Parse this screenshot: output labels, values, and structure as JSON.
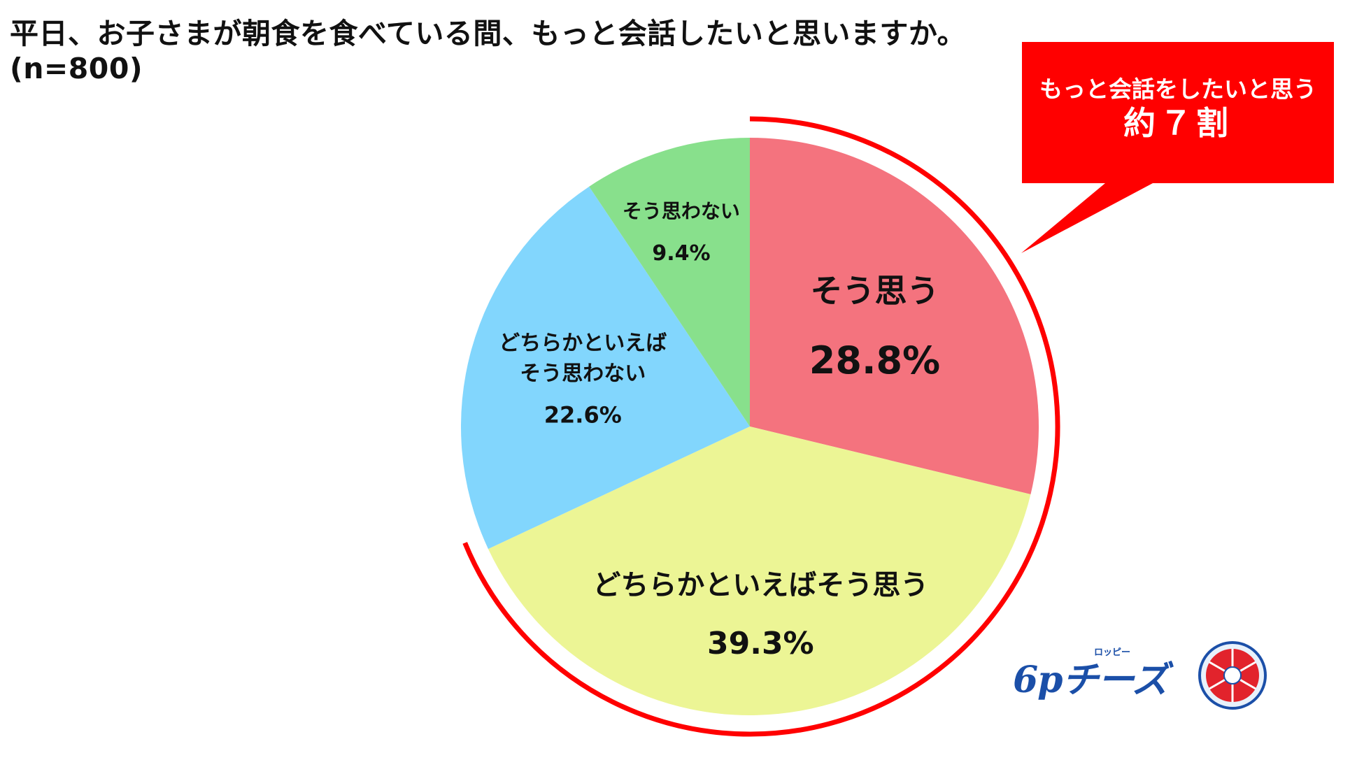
{
  "title": {
    "line1": "平日、お子さまが朝食を食べている間、もっと会話したいと思いますか。",
    "line2": "(n=800)"
  },
  "callout": {
    "line1": "もっと会話をしたいと思う",
    "line2": "約７割",
    "color": "#ff0000"
  },
  "logo": {
    "text": "6pチーズ",
    "sub": "ロッピー"
  },
  "chart_data": {
    "type": "pie",
    "start": "12 o'clock, clockwise",
    "slices": [
      {
        "label": "そう思う",
        "value": 28.8,
        "value_label": "28.8%",
        "color": "#f4737e"
      },
      {
        "label": "どちらかといえばそう思う",
        "value": 39.3,
        "value_label": "39.3%",
        "color": "#ecf595"
      },
      {
        "label": "どちらかといえばそう思わない",
        "label_lines": [
          "どちらかといえば",
          "そう思わない"
        ],
        "value": 22.6,
        "value_label": "22.6%",
        "color": "#82d6fd"
      },
      {
        "label": "そう思わない",
        "value": 9.4,
        "value_label": "9.4%",
        "color": "#88e08c"
      }
    ],
    "highlight_arc_color": "#ff0000"
  }
}
